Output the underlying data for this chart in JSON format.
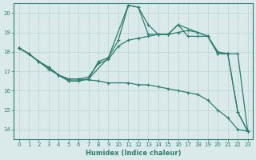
{
  "xlabel": "Humidex (Indice chaleur)",
  "xlim": [
    -0.5,
    23.5
  ],
  "ylim": [
    13.5,
    20.5
  ],
  "xticks": [
    0,
    1,
    2,
    3,
    4,
    5,
    6,
    7,
    8,
    9,
    10,
    11,
    12,
    13,
    14,
    15,
    16,
    17,
    18,
    19,
    20,
    21,
    22,
    23
  ],
  "yticks": [
    14,
    15,
    16,
    17,
    18,
    19,
    20
  ],
  "bg_color": "#daeaea",
  "line_color": "#2e7d6e",
  "grid_color": "#c0d8d8",
  "lines": [
    {
      "x": [
        0,
        1,
        2,
        3,
        4,
        5,
        6,
        8,
        9,
        11,
        12,
        13,
        14,
        15,
        16,
        17,
        18,
        19,
        20,
        21,
        22,
        23
      ],
      "y": [
        18.2,
        17.9,
        17.5,
        17.1,
        16.8,
        16.6,
        16.6,
        16.5,
        16.4,
        16.4,
        16.3,
        16.3,
        16.2,
        16.1,
        16.0,
        15.9,
        15.8,
        15.5,
        15.0,
        14.6,
        14.0,
        13.9
      ]
    },
    {
      "x": [
        0,
        1,
        2,
        3,
        4,
        5,
        6,
        7,
        8,
        9,
        10,
        11,
        12,
        13,
        14,
        15,
        16,
        17,
        18,
        19,
        20,
        21,
        22,
        23
      ],
      "y": [
        18.2,
        17.9,
        17.5,
        17.2,
        16.8,
        16.6,
        16.6,
        16.7,
        17.4,
        17.6,
        18.3,
        18.6,
        18.7,
        18.8,
        18.9,
        18.9,
        19.0,
        19.1,
        19.0,
        18.8,
        18.0,
        17.9,
        17.9,
        13.9
      ]
    },
    {
      "x": [
        0,
        1,
        2,
        3,
        4,
        5,
        6,
        7,
        8,
        9,
        10,
        11,
        12,
        13,
        14,
        15,
        16,
        17,
        18,
        19,
        20,
        21,
        22,
        23
      ],
      "y": [
        18.2,
        17.9,
        17.5,
        17.2,
        16.8,
        16.5,
        16.5,
        16.6,
        17.5,
        17.7,
        18.6,
        20.4,
        20.3,
        18.9,
        18.9,
        18.9,
        19.4,
        18.8,
        18.8,
        18.8,
        17.9,
        17.9,
        14.9,
        13.9
      ]
    },
    {
      "x": [
        0,
        1,
        2,
        3,
        4,
        5,
        6,
        7,
        9,
        11,
        12,
        13,
        14,
        15,
        16,
        19,
        20,
        21,
        22,
        23
      ],
      "y": [
        18.2,
        17.9,
        17.5,
        17.2,
        16.8,
        16.5,
        16.5,
        16.6,
        17.7,
        20.4,
        20.3,
        19.4,
        18.9,
        18.9,
        19.4,
        18.8,
        17.9,
        17.9,
        14.9,
        13.9
      ]
    }
  ]
}
